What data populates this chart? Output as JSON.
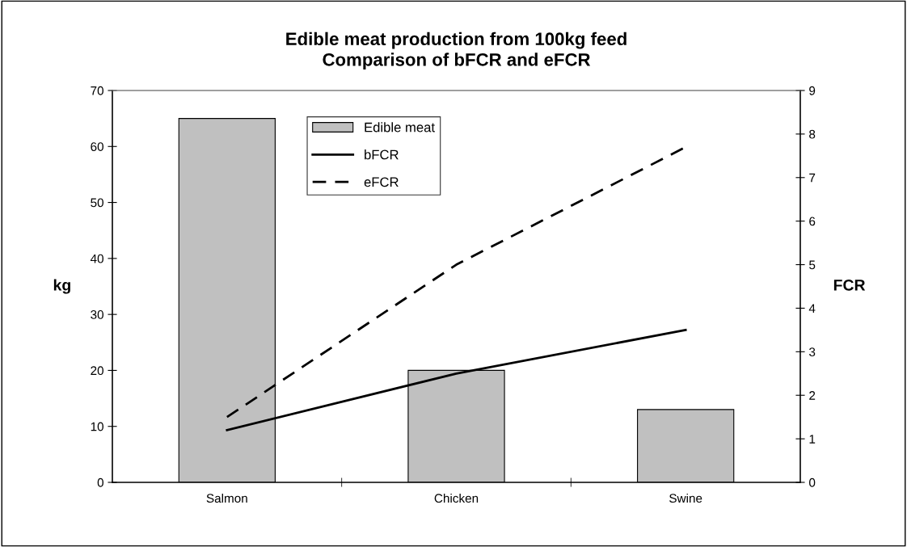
{
  "chart_data": {
    "type": "bar",
    "title": "Edible meat production from 100kg feed\nComparison of bFCR and eFCR",
    "ylabel": "kg",
    "y2label": "FCR",
    "categories": [
      "Salmon",
      "Chicken",
      "Swine"
    ],
    "series": [
      {
        "name": "Edible meat",
        "color": "#c0c0c0",
        "values": [
          65,
          20,
          13
        ]
      },
      {
        "name": "bFCR",
        "type": "line",
        "axis": "y2",
        "color": "#000000",
        "line_style": "solid",
        "values": [
          1.2,
          2.5,
          3.5
        ]
      },
      {
        "name": "eFCR",
        "type": "line",
        "axis": "y2",
        "color": "#000000",
        "line_style": "dashed",
        "values": [
          1.5,
          5.0,
          7.7
        ]
      }
    ],
    "ylim": [
      0,
      70
    ],
    "yticks": [
      0,
      10,
      20,
      30,
      40,
      50,
      60,
      70
    ],
    "y2lim": [
      0,
      9
    ],
    "y2ticks": [
      0,
      1,
      2,
      3,
      4,
      5,
      6,
      7,
      8,
      9
    ],
    "grid": false,
    "legend": "top"
  }
}
